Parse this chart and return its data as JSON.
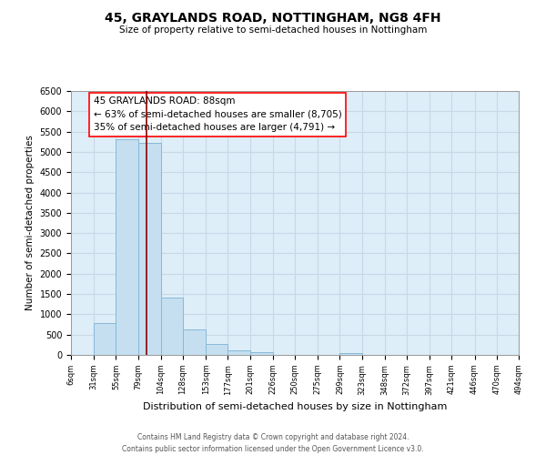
{
  "title": "45, GRAYLANDS ROAD, NOTTINGHAM, NG8 4FH",
  "subtitle": "Size of property relative to semi-detached houses in Nottingham",
  "xlabel": "Distribution of semi-detached houses by size in Nottingham",
  "ylabel": "Number of semi-detached properties",
  "bins": [
    6,
    31,
    55,
    79,
    104,
    128,
    153,
    177,
    201,
    226,
    250,
    275,
    299,
    323,
    348,
    372,
    397,
    421,
    446,
    470,
    494
  ],
  "bin_labels": [
    "6sqm",
    "31sqm",
    "55sqm",
    "79sqm",
    "104sqm",
    "128sqm",
    "153sqm",
    "177sqm",
    "201sqm",
    "226sqm",
    "250sqm",
    "275sqm",
    "299sqm",
    "323sqm",
    "348sqm",
    "372sqm",
    "397sqm",
    "421sqm",
    "446sqm",
    "470sqm",
    "494sqm"
  ],
  "counts": [
    0,
    780,
    5320,
    5220,
    1420,
    620,
    260,
    120,
    60,
    0,
    0,
    0,
    50,
    0,
    0,
    0,
    0,
    0,
    0,
    0
  ],
  "bar_color": "#c5dff0",
  "bar_edge_color": "#88b8d8",
  "property_size": 88,
  "annotation_title": "45 GRAYLANDS ROAD: 88sqm",
  "annotation_line1": "← 63% of semi-detached houses are smaller (8,705)",
  "annotation_line2": "35% of semi-detached houses are larger (4,791) →",
  "annotation_box_color": "white",
  "annotation_box_edge_color": "red",
  "ylim": [
    0,
    6500
  ],
  "yticks": [
    0,
    500,
    1000,
    1500,
    2000,
    2500,
    3000,
    3500,
    4000,
    4500,
    5000,
    5500,
    6000,
    6500
  ],
  "grid_color": "#c8d8e8",
  "background_color": "#ddeef8",
  "footer_line1": "Contains HM Land Registry data © Crown copyright and database right 2024.",
  "footer_line2": "Contains public sector information licensed under the Open Government Licence v3.0."
}
